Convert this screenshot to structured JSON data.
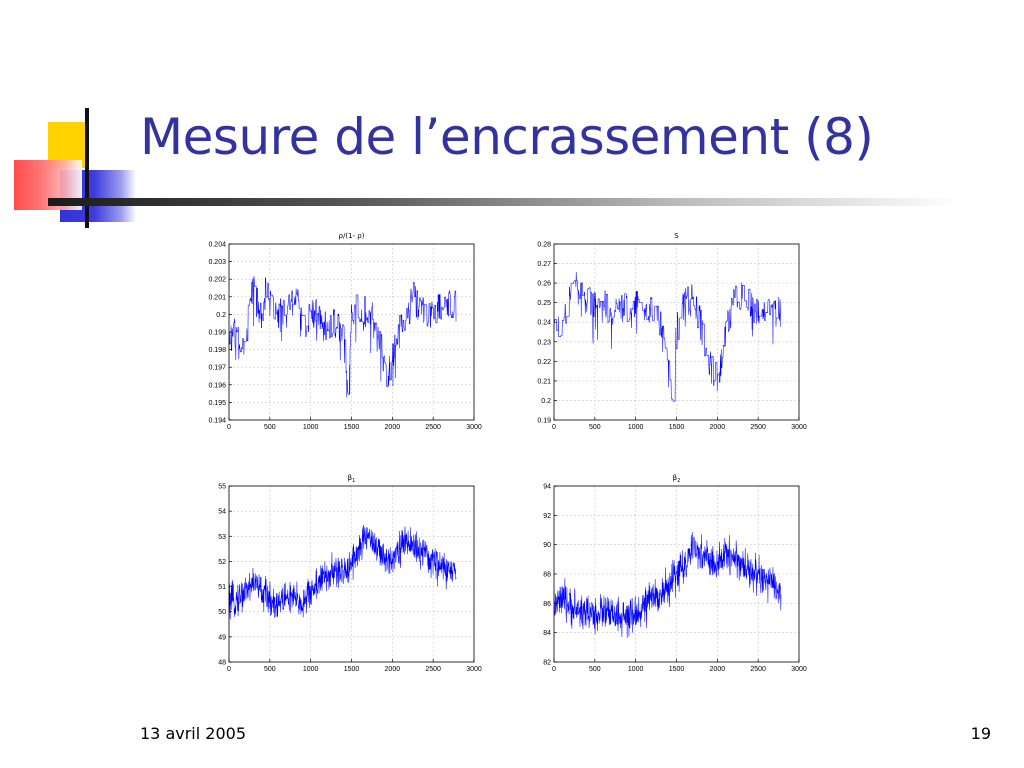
{
  "slide": {
    "title": "Mesure de l’encrassement (8)",
    "date": "13 avril 2005",
    "page_number": "19"
  },
  "colors": {
    "title": "#3333a0",
    "line": "#0000ff",
    "deco_yellow": "#ffd200",
    "deco_red": "#ff5a5a",
    "deco_blue": "#3c3cdc"
  },
  "chart_data": [
    {
      "type": "line",
      "title": "ρ/(1- ρ)",
      "title_sub": "",
      "xlim": [
        0,
        3000
      ],
      "ylim": [
        0.194,
        0.204
      ],
      "xticks": [
        0,
        500,
        1000,
        1500,
        2000,
        2500,
        3000
      ],
      "yticks": [
        0.194,
        0.195,
        0.196,
        0.197,
        0.198,
        0.199,
        0.2,
        0.201,
        0.202,
        0.203,
        0.204
      ],
      "ytick_labels": [
        "0.194",
        "0.195",
        "0.196",
        "0.197",
        "0.198",
        "0.199",
        "0.2",
        "0.201",
        "0.202",
        "0.203",
        "0.204"
      ],
      "grid": true,
      "series": [
        {
          "x": [
            0,
            50,
            100,
            150,
            200,
            250,
            300,
            350,
            400,
            450,
            500,
            600,
            700,
            800,
            900,
            950,
            1000,
            1100,
            1150,
            1200,
            1300,
            1400,
            1450,
            1500,
            1550,
            1600,
            1700,
            1750,
            1800,
            1850,
            1900,
            1950,
            2000,
            2050,
            2100,
            2150,
            2200,
            2250,
            2300,
            2400,
            2500,
            2600,
            2700,
            2780
          ],
          "y": [
            0.199,
            0.1985,
            0.1995,
            0.1975,
            0.1985,
            0.2005,
            0.2015,
            0.2005,
            0.2,
            0.2015,
            0.2005,
            0.2,
            0.2,
            0.201,
            0.2,
            0.1995,
            0.2,
            0.2,
            0.199,
            0.1995,
            0.1995,
            0.199,
            0.1955,
            0.2,
            0.2005,
            0.2005,
            0.2,
            0.2,
            0.1985,
            0.1985,
            0.197,
            0.1965,
            0.1975,
            0.1985,
            0.2,
            0.1995,
            0.2,
            0.2015,
            0.2005,
            0.2,
            0.2,
            0.2005,
            0.2005,
            0.2005
          ],
          "noise": 0.0009
        }
      ]
    },
    {
      "type": "line",
      "title": "S",
      "title_sub": "",
      "xlim": [
        0,
        3000
      ],
      "ylim": [
        0.19,
        0.28
      ],
      "xticks": [
        0,
        500,
        1000,
        1500,
        2000,
        2500,
        3000
      ],
      "yticks": [
        0.19,
        0.2,
        0.21,
        0.22,
        0.23,
        0.24,
        0.25,
        0.26,
        0.27,
        0.28
      ],
      "ytick_labels": [
        "0.19",
        "0.2",
        "0.21",
        "0.22",
        "0.23",
        "0.24",
        "0.25",
        "0.26",
        "0.27",
        "0.28"
      ],
      "grid": true,
      "series": [
        {
          "x": [
            0,
            50,
            100,
            150,
            200,
            250,
            300,
            350,
            400,
            450,
            500,
            600,
            700,
            800,
            900,
            1000,
            1100,
            1200,
            1300,
            1350,
            1400,
            1450,
            1500,
            1550,
            1600,
            1700,
            1800,
            1850,
            1900,
            1950,
            2000,
            2050,
            2100,
            2200,
            2300,
            2400,
            2500,
            2600,
            2700,
            2780
          ],
          "y": [
            0.24,
            0.238,
            0.235,
            0.245,
            0.255,
            0.26,
            0.255,
            0.258,
            0.252,
            0.25,
            0.248,
            0.25,
            0.245,
            0.25,
            0.248,
            0.25,
            0.248,
            0.245,
            0.24,
            0.238,
            0.215,
            0.2,
            0.235,
            0.245,
            0.25,
            0.252,
            0.24,
            0.225,
            0.22,
            0.215,
            0.212,
            0.22,
            0.235,
            0.25,
            0.255,
            0.25,
            0.245,
            0.248,
            0.245,
            0.245
          ],
          "noise": 0.008
        }
      ]
    },
    {
      "type": "line",
      "title": "β",
      "title_sub": "1",
      "xlim": [
        0,
        3000
      ],
      "ylim": [
        48,
        55
      ],
      "xticks": [
        0,
        500,
        1000,
        1500,
        2000,
        2500,
        3000
      ],
      "yticks": [
        48,
        49,
        50,
        51,
        52,
        53,
        54,
        55
      ],
      "ytick_labels": [
        "48",
        "49",
        "50",
        "51",
        "52",
        "53",
        "54",
        "55"
      ],
      "grid": true,
      "series": [
        {
          "x": [
            0,
            100,
            200,
            300,
            400,
            500,
            600,
            700,
            800,
            900,
            1000,
            1100,
            1200,
            1300,
            1400,
            1500,
            1600,
            1700,
            1800,
            1900,
            2000,
            2100,
            2200,
            2300,
            2400,
            2500,
            2600,
            2700,
            2780
          ],
          "y": [
            50.3,
            50.5,
            50.8,
            51.2,
            50.8,
            50.5,
            50.3,
            50.6,
            50.5,
            50.3,
            50.8,
            51.2,
            51.4,
            51.6,
            51.5,
            52.0,
            52.5,
            53.1,
            52.6,
            52.0,
            52.2,
            52.6,
            52.8,
            52.5,
            52.2,
            52.0,
            51.8,
            51.6,
            51.5
          ],
          "noise": 0.6
        }
      ]
    },
    {
      "type": "line",
      "title": "β",
      "title_sub": "2",
      "xlim": [
        0,
        3000
      ],
      "ylim": [
        82,
        94
      ],
      "xticks": [
        0,
        500,
        1000,
        1500,
        2000,
        2500,
        3000
      ],
      "yticks": [
        82,
        84,
        86,
        88,
        90,
        92,
        94
      ],
      "ytick_labels": [
        "82",
        "84",
        "86",
        "88",
        "90",
        "92",
        "94"
      ],
      "grid": true,
      "series": [
        {
          "x": [
            0,
            100,
            200,
            300,
            400,
            500,
            600,
            700,
            800,
            900,
            1000,
            1100,
            1200,
            1300,
            1400,
            1500,
            1600,
            1700,
            1800,
            1900,
            2000,
            2100,
            2200,
            2300,
            2400,
            2500,
            2600,
            2700,
            2780
          ],
          "y": [
            85.8,
            86.2,
            85.8,
            85.5,
            85.4,
            85.2,
            85.5,
            85.2,
            85.0,
            84.9,
            85.2,
            85.8,
            86.3,
            86.7,
            87.0,
            88.1,
            88.6,
            89.6,
            89.4,
            89.0,
            88.4,
            89.5,
            89.2,
            88.6,
            88.3,
            87.9,
            87.5,
            87.1,
            86.8
          ],
          "noise": 1.1
        }
      ]
    }
  ]
}
